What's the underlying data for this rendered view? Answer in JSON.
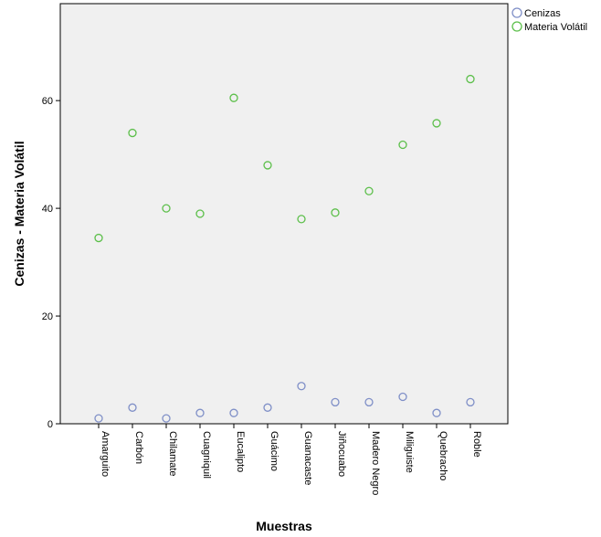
{
  "chart_data": {
    "type": "scatter",
    "categories": [
      "Amarguito",
      "Carbón",
      "Chilamate",
      "Cuagniquil",
      "Eucalipto",
      "Guácimo",
      "Guanacaste",
      "Jiñocuabo",
      "Madero Negro",
      "Miliguiste",
      "Quebracho",
      "Roble"
    ],
    "series": [
      {
        "name": "Cenizas",
        "values": [
          1,
          3,
          1,
          2,
          2,
          3,
          7,
          4,
          4,
          5,
          2,
          4
        ],
        "color": "#7f8fc7"
      },
      {
        "name": "Materia Volátil",
        "values": [
          34.5,
          54,
          40,
          39,
          60.5,
          48,
          38,
          39.2,
          43.2,
          51.8,
          55.8,
          64
        ],
        "color": "#5cbf4a"
      }
    ],
    "title": "",
    "xlabel": "Muestras",
    "ylabel": "Cenizas - Materia Volátil",
    "ylim": [
      0,
      78
    ],
    "yticks": [
      0,
      20,
      40,
      60
    ],
    "grid": false,
    "legend_position": "top-right",
    "plot_background": "#f0f0f0"
  }
}
